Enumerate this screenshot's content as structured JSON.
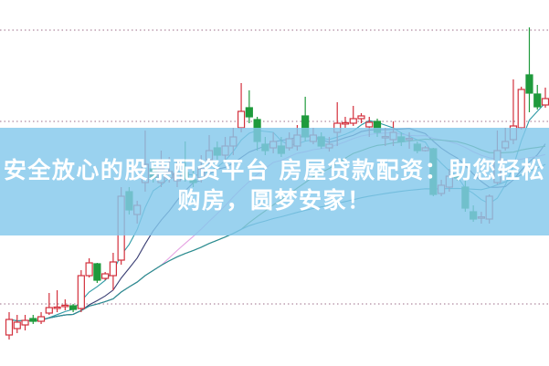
{
  "banner": {
    "line1": "安全放心的股票配资平台 房屋贷款配资：助您轻松",
    "line2": "购房，圆梦安家！"
  },
  "chart_data": {
    "type": "candlestick",
    "title": "",
    "xlabel": "",
    "ylabel": "",
    "ylim": [
      0,
      100
    ],
    "grid": "horizontal dotted",
    "colors": {
      "up": "#d3303c",
      "down": "#1f9a3c",
      "ma": [
        "#2f9aa6",
        "#3a3f74",
        "#e6a2e2",
        "#3d8a34",
        "#2a8c9c"
      ],
      "grid": "#b08aa0"
    },
    "candles_ohlc": [
      [
        8.25,
        14.5,
        7,
        12.5
      ],
      [
        10,
        13.75,
        8.75,
        11.75
      ],
      [
        11,
        13.75,
        9.5,
        12.25
      ],
      [
        12.75,
        13.75,
        11.25,
        12
      ],
      [
        12,
        14.5,
        11.25,
        13.25
      ],
      [
        14.25,
        19.75,
        13.75,
        15.75
      ],
      [
        15.75,
        20.5,
        14.5,
        15.9
      ],
      [
        16.25,
        18,
        15,
        16.4
      ],
      [
        16.25,
        16.75,
        14.5,
        15.25
      ],
      [
        15.5,
        26,
        14.5,
        24.5
      ],
      [
        24.5,
        29.25,
        24,
        28
      ],
      [
        27.75,
        28,
        22.5,
        23.25
      ],
      [
        23.75,
        25.5,
        23.25,
        25
      ],
      [
        24.5,
        30.75,
        20.5,
        28.25
      ],
      [
        28.75,
        48.75,
        27.5,
        46.25
      ],
      [
        47.5,
        48.75,
        41.25,
        42.5
      ],
      [
        41.25,
        45,
        38.75,
        43.75
      ],
      [
        50,
        64.25,
        47.5,
        55
      ],
      [
        53.75,
        56.25,
        50,
        51.25
      ],
      [
        50,
        58.75,
        48.75,
        53.75
      ],
      [
        51.25,
        57,
        50,
        53
      ],
      [
        50.5,
        56.25,
        48.75,
        52.5
      ],
      [
        52.75,
        61.25,
        50.25,
        51
      ],
      [
        50.75,
        53.75,
        48.75,
        50
      ],
      [
        51.25,
        57.5,
        50,
        53.75
      ],
      [
        56.25,
        63,
        55,
        58.75
      ],
      [
        59.5,
        61.25,
        56.25,
        57.5
      ],
      [
        57.5,
        62.5,
        56.25,
        60
      ],
      [
        60,
        65,
        57.5,
        62.5
      ],
      [
        65,
        77.25,
        63.75,
        69.5
      ],
      [
        70.5,
        75.25,
        66.25,
        68
      ],
      [
        67.25,
        68,
        58.75,
        61.25
      ],
      [
        60.5,
        62.5,
        57.5,
        58.75
      ],
      [
        59.5,
        63.75,
        58,
        61.25
      ],
      [
        60,
        62.5,
        57,
        58
      ],
      [
        59.5,
        63.75,
        58.75,
        62
      ],
      [
        60,
        65.75,
        58.75,
        63
      ],
      [
        68.25,
        73.5,
        61.25,
        62.5
      ],
      [
        61.25,
        65,
        60.5,
        63
      ],
      [
        62.5,
        63.75,
        59.25,
        60
      ],
      [
        59.5,
        62.5,
        58.5,
        60.5
      ],
      [
        63.75,
        72,
        60,
        66.25
      ],
      [
        66.25,
        68,
        65,
        66.4
      ],
      [
        66.25,
        71,
        65.5,
        67.5
      ],
      [
        67.5,
        69,
        66.25,
        68.25
      ],
      [
        65.25,
        68,
        62.5,
        66.5
      ],
      [
        66.75,
        67.5,
        62.5,
        63.75
      ],
      [
        62.5,
        65,
        60,
        62.6
      ],
      [
        61.75,
        66.75,
        60,
        63.75
      ],
      [
        62.5,
        63.75,
        60,
        61.25
      ],
      [
        62,
        63.75,
        59.25,
        62.1
      ],
      [
        60.5,
        61.25,
        58,
        58.75
      ],
      [
        58.75,
        60,
        58.5,
        59.5
      ],
      [
        59.25,
        59.5,
        46.25,
        46.75
      ],
      [
        47,
        50.75,
        46.25,
        49.25
      ],
      [
        48.75,
        53.75,
        47.5,
        51.75
      ],
      [
        52,
        53,
        50.5,
        51.25
      ],
      [
        48.75,
        50.5,
        42,
        43
      ],
      [
        42,
        43.75,
        39.25,
        40
      ],
      [
        40.5,
        42,
        38.75,
        40.6
      ],
      [
        40,
        46.75,
        38.75,
        46.25
      ],
      [
        50,
        64.25,
        49.5,
        58.75
      ],
      [
        59.5,
        65,
        58.75,
        61.25
      ],
      [
        61.75,
        78.25,
        60.5,
        65.5
      ],
      [
        65,
        76.25,
        64.5,
        75.5
      ],
      [
        79.5,
        92.5,
        69.25,
        74.5
      ],
      [
        74.25,
        76.75,
        70,
        70.75
      ],
      [
        71.25,
        76,
        70.5,
        73
      ]
    ],
    "moving_averages": [
      5,
      10,
      20,
      30,
      60
    ]
  }
}
